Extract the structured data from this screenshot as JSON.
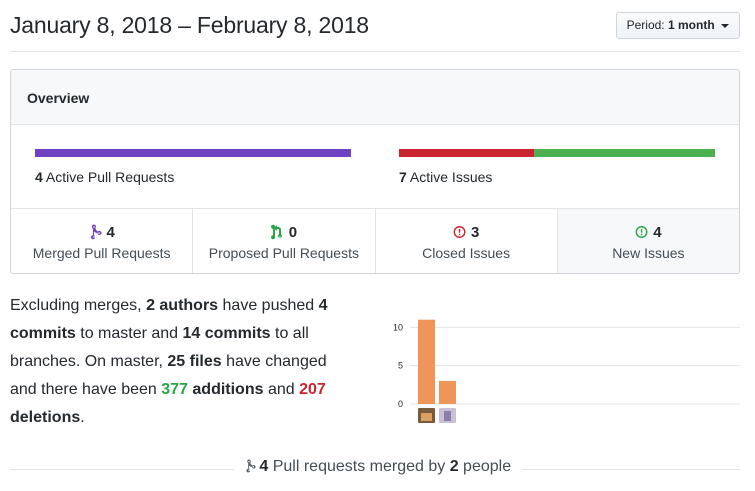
{
  "header": {
    "date_range": "January 8, 2018 – February 8, 2018",
    "period_label": "Period:",
    "period_value": "1 month"
  },
  "overview": {
    "title": "Overview",
    "pull_requests": {
      "count": "4",
      "label": "Active Pull Requests",
      "fill": 1.0,
      "color": "#6f42c1"
    },
    "issues": {
      "count": "7",
      "label": "Active Issues",
      "closed_fraction": 0.4286,
      "closed_color": "#cb2431",
      "open_color": "#4caf50"
    },
    "stats": [
      {
        "icon": "git-merge-icon",
        "value": "4",
        "label": "Merged Pull Requests",
        "color": "#6f42c1"
      },
      {
        "icon": "git-pull-request-icon",
        "value": "0",
        "label": "Proposed Pull Requests",
        "color": "#28a745"
      },
      {
        "icon": "issue-closed-icon",
        "value": "3",
        "label": "Closed Issues",
        "color": "#cb2431"
      },
      {
        "icon": "issue-opened-icon",
        "value": "4",
        "label": "New Issues",
        "color": "#28a745"
      }
    ]
  },
  "summary": {
    "t1": "Excluding merges, ",
    "authors": "2 authors",
    "t2": " have pushed ",
    "commits_master": "4 commits",
    "t3": " to master and ",
    "commits_all": "14 commits",
    "t4": " to all branches. On master, ",
    "files": "25 files",
    "t5": " have changed and there have been ",
    "additions": "377",
    "additions_word": "additions",
    "t6": " and ",
    "deletions": "207",
    "deletions_word": "deletions",
    "t7": "."
  },
  "chart_data": {
    "type": "bar",
    "categories": [
      "author-1",
      "author-2"
    ],
    "values": [
      11,
      3
    ],
    "yticks": [
      "10",
      "5",
      "0"
    ],
    "ylim": [
      0,
      12
    ],
    "bar_color": "#f0955a",
    "grid": true
  },
  "footer": {
    "count": "4",
    "t1": " Pull requests merged by ",
    "people": "2",
    "t2": " people",
    "icon": "git-merge-icon"
  }
}
